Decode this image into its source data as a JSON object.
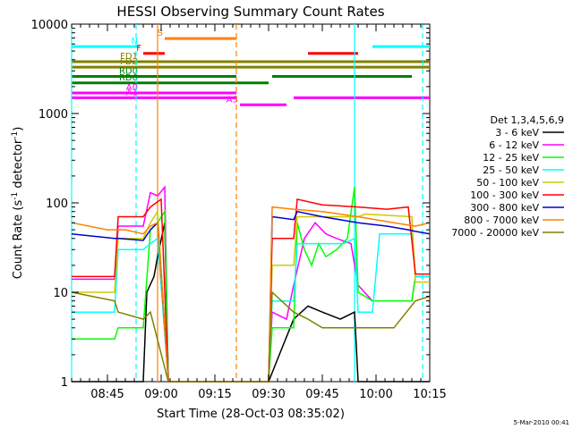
{
  "chart_data": {
    "type": "line",
    "title": "HESSI Observing Summary Count Rates",
    "xlabel": "Start Time (28-Oct-03 08:35:02)",
    "ylabel_main": "Count Rate (s",
    "ylabel_sup": "-1",
    "ylabel_mid": " detector",
    "ylabel_sup2": "-1",
    "ylabel_end": ")",
    "y_scale": "log",
    "ylim": [
      1,
      10000
    ],
    "y_ticks": [
      {
        "v": 1,
        "label": "1"
      },
      {
        "v": 10,
        "label": "10"
      },
      {
        "v": 100,
        "label": "100"
      },
      {
        "v": 1000,
        "label": "1000"
      },
      {
        "v": 10000,
        "label": "10000"
      }
    ],
    "xlim_minutes": [
      0,
      100
    ],
    "x_ticks": [
      {
        "m": 10,
        "label": "08:45"
      },
      {
        "m": 25,
        "label": "09:00"
      },
      {
        "m": 40,
        "label": "09:15"
      },
      {
        "m": 55,
        "label": "09:30"
      },
      {
        "m": 70,
        "label": "09:45"
      },
      {
        "m": 85,
        "label": "10:00"
      },
      {
        "m": 100,
        "label": "10:15"
      }
    ],
    "legend_title": "Det 1,3,4,5,6,9",
    "series": [
      {
        "name": "3 - 6 keV",
        "color": "#000000",
        "points": [
          [
            0,
            1
          ],
          [
            20,
            1
          ],
          [
            21,
            10
          ],
          [
            23,
            15
          ],
          [
            24,
            25
          ],
          [
            26,
            60
          ],
          [
            27,
            1
          ],
          [
            55,
            1
          ],
          [
            58,
            2
          ],
          [
            62,
            5
          ],
          [
            66,
            7
          ],
          [
            70,
            6
          ],
          [
            75,
            5
          ],
          [
            79,
            6
          ],
          [
            80,
            1
          ],
          [
            100,
            1
          ]
        ]
      },
      {
        "name": "6 - 12 keV",
        "color": "#ff00ff",
        "points": [
          [
            0,
            14
          ],
          [
            12,
            14
          ],
          [
            13,
            55
          ],
          [
            20,
            55
          ],
          [
            22,
            130
          ],
          [
            24,
            120
          ],
          [
            26,
            150
          ],
          [
            27,
            1
          ],
          [
            55,
            1
          ],
          [
            56,
            6
          ],
          [
            60,
            5
          ],
          [
            62,
            12
          ],
          [
            65,
            40
          ],
          [
            68,
            60
          ],
          [
            71,
            45
          ],
          [
            74,
            40
          ],
          [
            78,
            35
          ],
          [
            80,
            12
          ],
          [
            84,
            8
          ],
          [
            95,
            8
          ],
          [
            96,
            15
          ],
          [
            100,
            15
          ]
        ]
      },
      {
        "name": "12 - 25 keV",
        "color": "#00ff00",
        "points": [
          [
            0,
            3
          ],
          [
            12,
            3
          ],
          [
            13,
            4
          ],
          [
            20,
            4
          ],
          [
            22,
            50
          ],
          [
            24,
            60
          ],
          [
            26,
            80
          ],
          [
            27,
            1
          ],
          [
            55,
            1
          ],
          [
            56,
            4
          ],
          [
            62,
            4
          ],
          [
            63,
            60
          ],
          [
            65,
            30
          ],
          [
            67,
            20
          ],
          [
            69,
            35
          ],
          [
            71,
            25
          ],
          [
            74,
            30
          ],
          [
            77,
            40
          ],
          [
            79,
            150
          ],
          [
            80,
            10
          ],
          [
            84,
            8
          ],
          [
            95,
            8
          ],
          [
            96,
            15
          ],
          [
            100,
            15
          ]
        ]
      },
      {
        "name": "25 - 50 keV",
        "color": "#00ffff",
        "points": [
          [
            0,
            6
          ],
          [
            12,
            6
          ],
          [
            13,
            30
          ],
          [
            20,
            30
          ],
          [
            22,
            35
          ],
          [
            24,
            40
          ],
          [
            27,
            1
          ],
          [
            55,
            1
          ],
          [
            56,
            8
          ],
          [
            62,
            8
          ],
          [
            63,
            35
          ],
          [
            70,
            35
          ],
          [
            76,
            35
          ],
          [
            79,
            40
          ],
          [
            80,
            6
          ],
          [
            84,
            6
          ],
          [
            86,
            45
          ],
          [
            95,
            45
          ],
          [
            96,
            15
          ],
          [
            100,
            15
          ]
        ]
      },
      {
        "name": "50 - 100 keV",
        "color": "#cccc00",
        "points": [
          [
            0,
            10
          ],
          [
            12,
            10
          ],
          [
            13,
            40
          ],
          [
            20,
            40
          ],
          [
            22,
            60
          ],
          [
            24,
            80
          ],
          [
            27,
            1
          ],
          [
            55,
            1
          ],
          [
            56,
            20
          ],
          [
            62,
            20
          ],
          [
            63,
            70
          ],
          [
            80,
            70
          ],
          [
            82,
            75
          ],
          [
            95,
            70
          ],
          [
            96,
            13
          ],
          [
            100,
            13
          ]
        ]
      },
      {
        "name": "100 - 300 keV",
        "color": "#ff0000",
        "points": [
          [
            0,
            15
          ],
          [
            12,
            15
          ],
          [
            13,
            70
          ],
          [
            20,
            70
          ],
          [
            22,
            90
          ],
          [
            25,
            110
          ],
          [
            27,
            1
          ],
          [
            55,
            1
          ],
          [
            56,
            40
          ],
          [
            62,
            40
          ],
          [
            63,
            110
          ],
          [
            70,
            95
          ],
          [
            80,
            90
          ],
          [
            88,
            85
          ],
          [
            94,
            90
          ],
          [
            96,
            16
          ],
          [
            100,
            16
          ]
        ]
      },
      {
        "name": "300 - 800 keV",
        "color": "#0000cc",
        "points": [
          [
            0,
            45
          ],
          [
            12,
            40
          ],
          [
            13,
            40
          ],
          [
            20,
            38
          ],
          [
            22,
            50
          ],
          [
            24,
            60
          ],
          [
            27,
            1
          ],
          [
            55,
            1
          ],
          [
            56,
            70
          ],
          [
            62,
            65
          ],
          [
            63,
            80
          ],
          [
            70,
            70
          ],
          [
            80,
            60
          ],
          [
            88,
            55
          ],
          [
            94,
            50
          ],
          [
            96,
            48
          ],
          [
            100,
            45
          ]
        ]
      },
      {
        "name": "800 - 7000 keV",
        "color": "#ff8000",
        "points": [
          [
            0,
            60
          ],
          [
            10,
            50
          ],
          [
            15,
            50
          ],
          [
            20,
            45
          ],
          [
            22,
            55
          ],
          [
            24,
            60
          ],
          [
            27,
            1
          ],
          [
            55,
            1
          ],
          [
            56,
            90
          ],
          [
            62,
            85
          ],
          [
            70,
            80
          ],
          [
            80,
            70
          ],
          [
            90,
            60
          ],
          [
            96,
            55
          ],
          [
            100,
            60
          ]
        ]
      },
      {
        "name": "7000 - 20000 keV",
        "color": "#808000",
        "points": [
          [
            0,
            10
          ],
          [
            12,
            8
          ],
          [
            13,
            6
          ],
          [
            20,
            5
          ],
          [
            22,
            6
          ],
          [
            27,
            1
          ],
          [
            55,
            1
          ],
          [
            56,
            10
          ],
          [
            62,
            6
          ],
          [
            66,
            5
          ],
          [
            70,
            4
          ],
          [
            80,
            4
          ],
          [
            90,
            4
          ],
          [
            96,
            8
          ],
          [
            100,
            9
          ]
        ]
      }
    ],
    "flag_bars": [
      {
        "label": "S",
        "color": "#ff8000",
        "start": 26,
        "end": 46,
        "level": 6900
      },
      {
        "label": "N",
        "color": "#00ffff",
        "start": 0,
        "end": 19,
        "level": 5600
      },
      {
        "label": "",
        "color": "#00ffff",
        "start": 84,
        "end": 100,
        "level": 5600
      },
      {
        "label": "F",
        "color": "#ff0000",
        "start": 20,
        "end": 26,
        "level": 4700
      },
      {
        "label": "",
        "color": "#ff0000",
        "start": 66,
        "end": 80,
        "level": 4700
      },
      {
        "label": "FD1",
        "color": "#808000",
        "start": 0,
        "end": 100,
        "level": 3800
      },
      {
        "label": "FD2",
        "color": "#808000",
        "start": 0,
        "end": 100,
        "level": 3300
      },
      {
        "label": "RD0",
        "color": "#008000",
        "start": 0,
        "end": 46,
        "level": 2600
      },
      {
        "label": "",
        "color": "#008000",
        "start": 56,
        "end": 95,
        "level": 2600
      },
      {
        "label": "RD6",
        "color": "#008000",
        "start": 0,
        "end": 46,
        "level": 2200
      },
      {
        "label": "",
        "color": "#008000",
        "start": 46,
        "end": 55,
        "level": 2200
      },
      {
        "label": "A0",
        "color": "#ff00ff",
        "start": 0,
        "end": 46,
        "level": 1700
      },
      {
        "label": "A1",
        "color": "#ff00ff",
        "start": 0,
        "end": 46,
        "level": 1500
      },
      {
        "label": "",
        "color": "#ff00ff",
        "start": 62,
        "end": 100,
        "level": 1500
      },
      {
        "label": "A3",
        "color": "#ff00ff",
        "start": 47,
        "end": 60,
        "level": 1250
      }
    ],
    "vlines": [
      {
        "m": 0,
        "color": "#00ffff",
        "dash": false
      },
      {
        "m": 18,
        "color": "#00ffff",
        "dash": true
      },
      {
        "m": 24,
        "color": "#ff8000",
        "dash": false
      },
      {
        "m": 46,
        "color": "#ff8000",
        "dash": true
      },
      {
        "m": 79,
        "color": "#00ffff",
        "dash": false
      },
      {
        "m": 98,
        "color": "#00ffff",
        "dash": true
      }
    ],
    "grid": false,
    "legend_position": "right"
  },
  "footer_date": "5-Mar-2010 00:41"
}
